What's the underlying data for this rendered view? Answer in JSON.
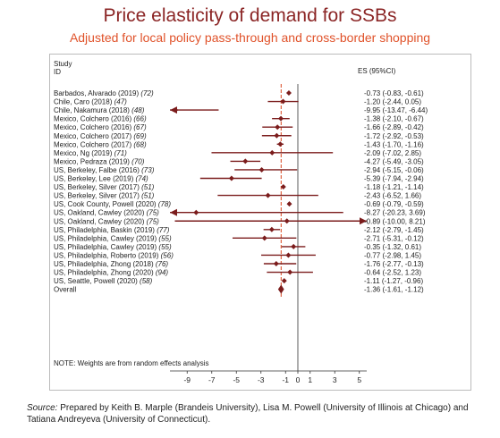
{
  "header": {
    "title": "Price elasticity of demand for SSBs",
    "subtitle": "Adjusted for local policy pass-through and cross-border shopping"
  },
  "columns": {
    "study_line1": "Study",
    "study_line2": "ID",
    "es": "ES (95%CI)"
  },
  "note": "NOTE: Weights are from random effects analysis",
  "source": {
    "label": "Source:",
    "text": " Prepared by Keith B. Marple (Brandeis University), Lisa M. Powell (University of Illinois at Chicago) and Tatiana Andreyeva (University of Connecticut)."
  },
  "colors": {
    "accent": "#7b1c1c",
    "title": "#8b2525",
    "subtitle": "#e0522a",
    "dashed": "#d9481f"
  },
  "chart_data": {
    "type": "forest",
    "xticks": [
      -9,
      -7,
      -5,
      -3,
      -1,
      0,
      1,
      3,
      5
    ],
    "xlim": [
      -10.4,
      5.6
    ],
    "reference_lines": {
      "solid": 0,
      "dashed": -1.36
    },
    "studies": [
      {
        "id": "Barbados, Alvarado (2019)",
        "ref": "(72)",
        "es": -0.73,
        "lo": -0.83,
        "hi": -0.61,
        "label": "-0.73 (-0.83, -0.61)"
      },
      {
        "id": "Chile, Caro (2018)",
        "ref": "(47)",
        "es": -1.2,
        "lo": -2.44,
        "hi": 0.05,
        "label": "-1.20 (-2.44, 0.05)"
      },
      {
        "id": "Chile, Nakamura (2018)",
        "ref": "(48)",
        "es": -9.95,
        "lo": -13.47,
        "hi": -6.44,
        "label": "-9.95 (-13.47, -6.44)"
      },
      {
        "id": "Mexico, Colchero (2016)",
        "ref": "(66)",
        "es": -1.38,
        "lo": -2.1,
        "hi": -0.67,
        "label": "-1.38 (-2.10, -0.67)"
      },
      {
        "id": "Mexico, Colchero (2016)",
        "ref": "(67)",
        "es": -1.66,
        "lo": -2.89,
        "hi": -0.42,
        "label": "-1.66 (-2.89, -0.42)"
      },
      {
        "id": "Mexico, Colchero (2017)",
        "ref": "(69)",
        "es": -1.72,
        "lo": -2.92,
        "hi": -0.53,
        "label": "-1.72 (-2.92, -0.53)"
      },
      {
        "id": "Mexico, Colchero (2017)",
        "ref": "(68)",
        "es": -1.43,
        "lo": -1.7,
        "hi": -1.16,
        "label": "-1.43 (-1.70, -1.16)"
      },
      {
        "id": "Mexico, Ng (2019)",
        "ref": "(71)",
        "es": -2.09,
        "lo": -7.02,
        "hi": 2.85,
        "label": "-2.09 (-7.02, 2.85)"
      },
      {
        "id": "Mexico, Pedraza (2019)",
        "ref": "(70)",
        "es": -4.27,
        "lo": -5.49,
        "hi": -3.05,
        "label": "-4.27 (-5.49, -3.05)"
      },
      {
        "id": "US, Berkeley, Falbe (2016)",
        "ref": "(73)",
        "es": -2.94,
        "lo": -5.15,
        "hi": -0.06,
        "label": "-2.94 (-5.15, -0.06)"
      },
      {
        "id": "US, Berkeley, Lee (2019)",
        "ref": "(74)",
        "es": -5.39,
        "lo": -7.94,
        "hi": -2.94,
        "label": "-5.39 (-7.94, -2.94)"
      },
      {
        "id": "US, Berkeley, Silver (2017)",
        "ref": "(51)",
        "es": -1.18,
        "lo": -1.21,
        "hi": -1.14,
        "label": "-1.18 (-1.21, -1.14)"
      },
      {
        "id": "US, Berkeley, Silver (2017)",
        "ref": "(51)",
        "es": -2.43,
        "lo": -6.52,
        "hi": 1.66,
        "label": "-2.43 (-6.52, 1.66)"
      },
      {
        "id": "US, Cook County, Powell (2020)",
        "ref": "(78)",
        "es": -0.69,
        "lo": -0.79,
        "hi": -0.59,
        "label": "-0.69 (-0.79, -0.59)"
      },
      {
        "id": "US, Oakland, Cawley (2020)",
        "ref": "(75)",
        "es": -8.27,
        "lo": -20.23,
        "hi": 3.69,
        "label": "-8.27 (-20.23, 3.69)"
      },
      {
        "id": "US, Oakland, Cawley (2020)",
        "ref": "(75)",
        "es": -0.89,
        "lo": -10.0,
        "hi": 8.21,
        "label": "-0.89 (-10.00, 8.21)"
      },
      {
        "id": "US, Philadelphia, Baskin (2019)",
        "ref": "(77)",
        "es": -2.12,
        "lo": -2.79,
        "hi": -1.45,
        "label": "-2.12 (-2.79, -1.45)"
      },
      {
        "id": "US, Philadelphia, Cawley (2019)",
        "ref": "(55)",
        "es": -2.71,
        "lo": -5.31,
        "hi": -0.12,
        "label": "-2.71 (-5.31, -0.12)"
      },
      {
        "id": "US, Philadelphia, Cawley (2019)",
        "ref": "(55)",
        "es": -0.35,
        "lo": -1.32,
        "hi": 0.61,
        "label": "-0.35 (-1.32, 0.61)"
      },
      {
        "id": "US, Philadelphia, Roberto (2019)",
        "ref": "(56)",
        "es": -0.77,
        "lo": -2.98,
        "hi": 1.45,
        "label": "-0.77 (-2.98, 1.45)"
      },
      {
        "id": "US, Philadelphia, Zhong (2018)",
        "ref": "(76)",
        "es": -1.76,
        "lo": -2.77,
        "hi": -0.13,
        "label": "-1.76 (-2.77, -0.13)"
      },
      {
        "id": "US, Philadelphia, Zhong (2020)",
        "ref": "(94)",
        "es": -0.64,
        "lo": -2.52,
        "hi": 1.23,
        "label": "-0.64 (-2.52, 1.23)"
      },
      {
        "id": "US, Seattle, Powell (2020)",
        "ref": "(58)",
        "es": -1.11,
        "lo": -1.27,
        "hi": -0.96,
        "label": "-1.11 (-1.27, -0.96)"
      }
    ],
    "overall": {
      "id": "Overall",
      "es": -1.36,
      "lo": -1.61,
      "hi": -1.12,
      "label": "-1.36 (-1.61, -1.12)"
    }
  }
}
